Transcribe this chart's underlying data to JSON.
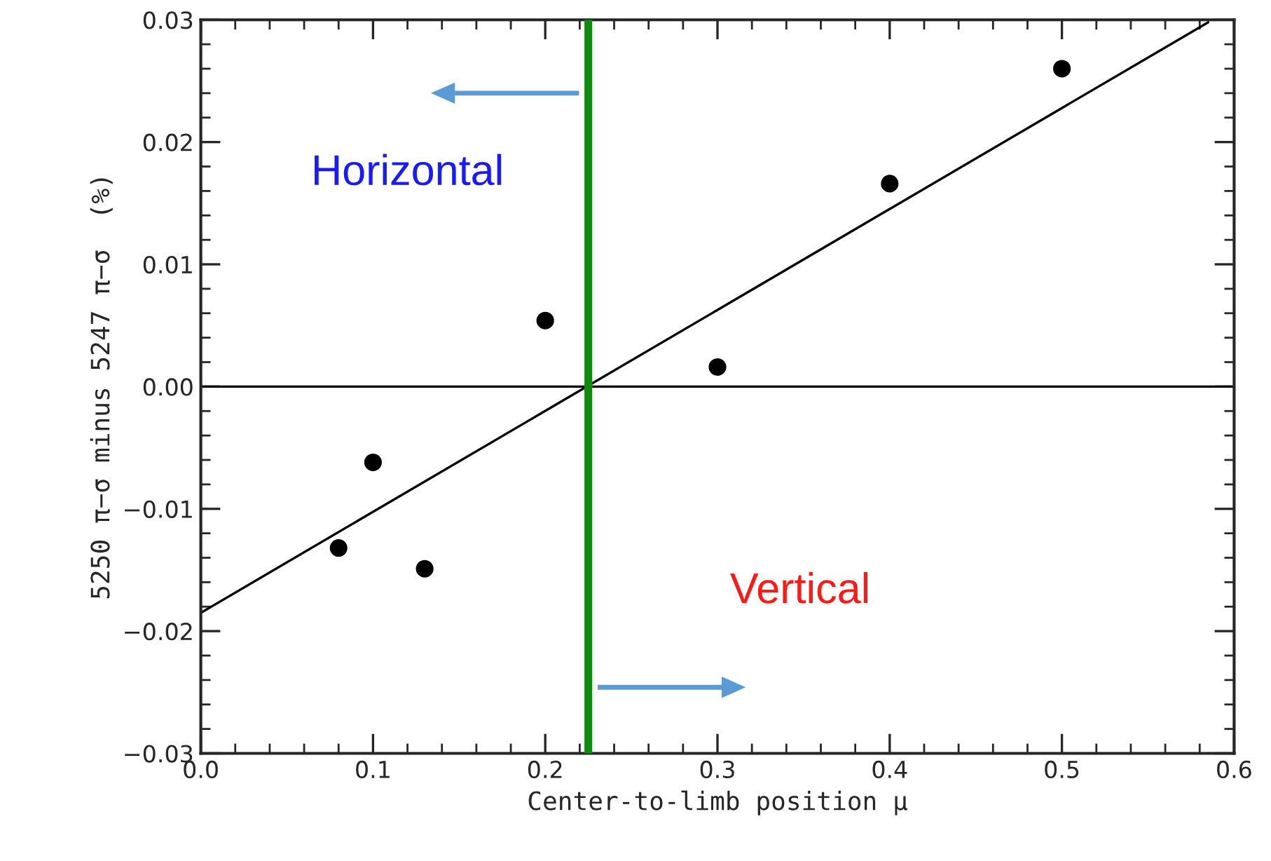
{
  "chart_data": {
    "type": "scatter",
    "xlabel": "Center-to-limb position μ",
    "ylabel": "5250 π−σ minus 5247 π−σ  (%)",
    "xlim": [
      0.0,
      0.6
    ],
    "ylim": [
      -0.03,
      0.03
    ],
    "xticks": [
      {
        "value": 0.0,
        "label": "0.0"
      },
      0.1,
      0.2,
      0.3,
      0.4,
      0.5,
      0.6
    ],
    "yticks": [
      {
        "value": -0.03,
        "label": "−0.03"
      },
      {
        "value": -0.02,
        "label": "−0.02"
      },
      {
        "value": -0.01,
        "label": "−0.01"
      },
      {
        "value": 0.0,
        "label": "0.00"
      },
      0.01,
      0.02,
      0.03
    ],
    "series": [
      {
        "marker": "circle",
        "color": "#000000",
        "x": [
          0.08,
          0.1,
          0.13,
          0.2,
          0.3,
          0.4,
          0.5
        ],
        "values": [
          -0.0132,
          -0.0062,
          -0.0149,
          0.0054,
          0.0016,
          0.0166,
          0.026
        ]
      },
      {
        "type": "line",
        "color": "#000000",
        "x": [
          0.0,
          0.585
        ],
        "values": [
          -0.0185,
          0.0298
        ]
      }
    ],
    "ref_lines": [
      {
        "axis": "y",
        "value": 0.0,
        "color": "#000000"
      },
      {
        "axis": "x",
        "value": 0.225,
        "color": "#118811"
      }
    ],
    "annotations": [
      "Horizontal",
      "Vertical"
    ],
    "grid": false,
    "line_style": "solid"
  }
}
